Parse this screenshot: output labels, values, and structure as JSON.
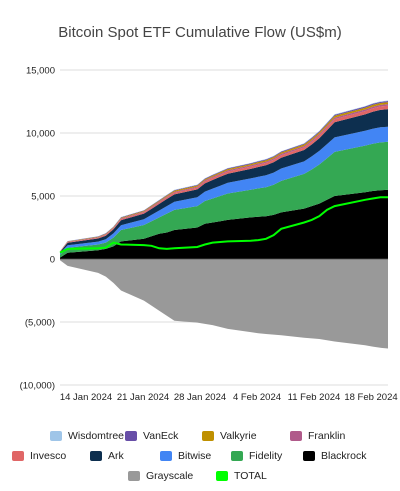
{
  "chart_data": {
    "type": "area",
    "title": "Bitcoin Spot ETF Cumulative Flow (US$m)",
    "xlabel": "",
    "ylabel": "",
    "ylim": [
      -10000,
      15000
    ],
    "y_ticks": [
      "15,000",
      "10,000",
      "5,000",
      "0",
      "(5,000)",
      "(10,000)"
    ],
    "x_tick_labels": [
      "14 Jan 2024",
      "21 Jan 2024",
      "28 Jan 2024",
      "4 Feb 2024",
      "11 Feb 2024",
      "18 Feb 2024"
    ],
    "x": [
      "11 Jan 2024",
      "12 Jan 2024",
      "16 Jan 2024",
      "17 Jan 2024",
      "18 Jan 2024",
      "19 Jan 2024",
      "22 Jan 2024",
      "23 Jan 2024",
      "24 Jan 2024",
      "25 Jan 2024",
      "26 Jan 2024",
      "29 Jan 2024",
      "30 Jan 2024",
      "31 Jan 2024",
      "1 Feb 2024",
      "2 Feb 2024",
      "5 Feb 2024",
      "6 Feb 2024",
      "7 Feb 2024",
      "8 Feb 2024",
      "9 Feb 2024",
      "12 Feb 2024",
      "13 Feb 2024",
      "14 Feb 2024",
      "15 Feb 2024",
      "16 Feb 2024",
      "20 Feb 2024",
      "21 Feb 2024",
      "22 Feb 2024",
      "23 Feb 2024"
    ],
    "day_offsets": [
      0,
      1,
      5,
      6,
      7,
      8,
      11,
      12,
      13,
      14,
      15,
      18,
      19,
      20,
      21,
      22,
      25,
      26,
      27,
      28,
      29,
      32,
      33,
      34,
      35,
      36,
      40,
      41,
      42,
      43
    ],
    "grid": true,
    "legend_position": "bottom",
    "series": [
      {
        "name": "Blackrock",
        "color": "#000000",
        "values": [
          110,
          500,
          700,
          800,
          1000,
          1400,
          1600,
          1800,
          2000,
          2100,
          2300,
          2500,
          2800,
          2900,
          3000,
          3100,
          3300,
          3350,
          3400,
          3500,
          3700,
          4000,
          4200,
          4400,
          4700,
          5000,
          5300,
          5400,
          5450,
          5500
        ]
      },
      {
        "name": "Fidelity",
        "color": "#34a853",
        "values": [
          230,
          400,
          450,
          500,
          700,
          900,
          1100,
          1200,
          1300,
          1500,
          1600,
          1700,
          1800,
          1900,
          2000,
          2100,
          2200,
          2250,
          2300,
          2400,
          2500,
          2750,
          2900,
          3100,
          3300,
          3500,
          3700,
          3750,
          3800,
          3800
        ]
      },
      {
        "name": "Bitwise",
        "color": "#4285f4",
        "values": [
          110,
          190,
          230,
          270,
          330,
          380,
          450,
          500,
          550,
          600,
          650,
          700,
          750,
          790,
          820,
          850,
          900,
          920,
          940,
          960,
          980,
          1000,
          1040,
          1080,
          1120,
          1150,
          1180,
          1190,
          1200,
          1200
        ]
      },
      {
        "name": "Ark",
        "color": "#0d2f4f",
        "values": [
          100,
          200,
          250,
          280,
          320,
          400,
          450,
          480,
          520,
          560,
          580,
          620,
          650,
          680,
          700,
          720,
          750,
          780,
          800,
          820,
          860,
          900,
          950,
          1000,
          1100,
          1200,
          1300,
          1350,
          1380,
          1400
        ]
      },
      {
        "name": "Invesco",
        "color": "#e06666",
        "values": [
          20,
          50,
          60,
          70,
          80,
          90,
          100,
          110,
          120,
          130,
          140,
          150,
          160,
          165,
          170,
          175,
          180,
          185,
          190,
          195,
          200,
          210,
          220,
          230,
          240,
          250,
          260,
          265,
          270,
          270
        ]
      },
      {
        "name": "Franklin",
        "color": "#b05a8a",
        "values": [
          20,
          30,
          40,
          45,
          50,
          55,
          60,
          65,
          70,
          72,
          75,
          80,
          85,
          90,
          92,
          95,
          100,
          102,
          104,
          106,
          108,
          112,
          115,
          118,
          120,
          122,
          125,
          126,
          127,
          128
        ]
      },
      {
        "name": "Valkyrie",
        "color": "#bf9000",
        "values": [
          10,
          30,
          40,
          45,
          50,
          55,
          60,
          65,
          70,
          75,
          80,
          85,
          90,
          95,
          98,
          100,
          105,
          108,
          110,
          112,
          115,
          120,
          125,
          130,
          135,
          140,
          145,
          148,
          150,
          150
        ]
      },
      {
        "name": "VanEck",
        "color": "#674ea7",
        "values": [
          10,
          20,
          25,
          30,
          32,
          35,
          38,
          40,
          42,
          44,
          46,
          48,
          50,
          52,
          54,
          56,
          58,
          60,
          62,
          64,
          66,
          70,
          74,
          78,
          82,
          86,
          90,
          92,
          94,
          95
        ]
      },
      {
        "name": "Wisdomtree",
        "color": "#9fc5e8",
        "values": [
          5,
          8,
          10,
          12,
          14,
          15,
          16,
          17,
          18,
          19,
          20,
          21,
          22,
          23,
          24,
          25,
          26,
          27,
          28,
          29,
          30,
          31,
          32,
          33,
          34,
          35,
          36,
          37,
          38,
          38
        ]
      },
      {
        "name": "Grayscale",
        "color": "#999999",
        "values": [
          -100,
          -550,
          -1100,
          -1400,
          -1900,
          -2500,
          -3300,
          -3700,
          -4100,
          -4500,
          -4900,
          -5050,
          -5150,
          -5250,
          -5400,
          -5550,
          -5800,
          -5900,
          -5950,
          -6000,
          -6050,
          -6250,
          -6300,
          -6350,
          -6450,
          -6550,
          -6850,
          -6950,
          -7050,
          -7100
        ]
      },
      {
        "name": "TOTAL",
        "color": "#00ff00",
        "values": [
          500,
          800,
          850,
          900,
          1300,
          1150,
          1100,
          1050,
          850,
          800,
          850,
          950,
          1150,
          1300,
          1350,
          1400,
          1450,
          1500,
          1600,
          1900,
          2400,
          2900,
          3100,
          3400,
          3900,
          4200,
          4700,
          4800,
          4900,
          4900
        ]
      }
    ]
  },
  "legend_rows": [
    [
      "Wisdomtree",
      "VanEck",
      "Valkyrie",
      "Franklin"
    ],
    [
      "Invesco",
      "Ark",
      "Bitwise",
      "Fidelity",
      "Blackrock"
    ],
    [
      "Grayscale",
      "TOTAL"
    ]
  ]
}
